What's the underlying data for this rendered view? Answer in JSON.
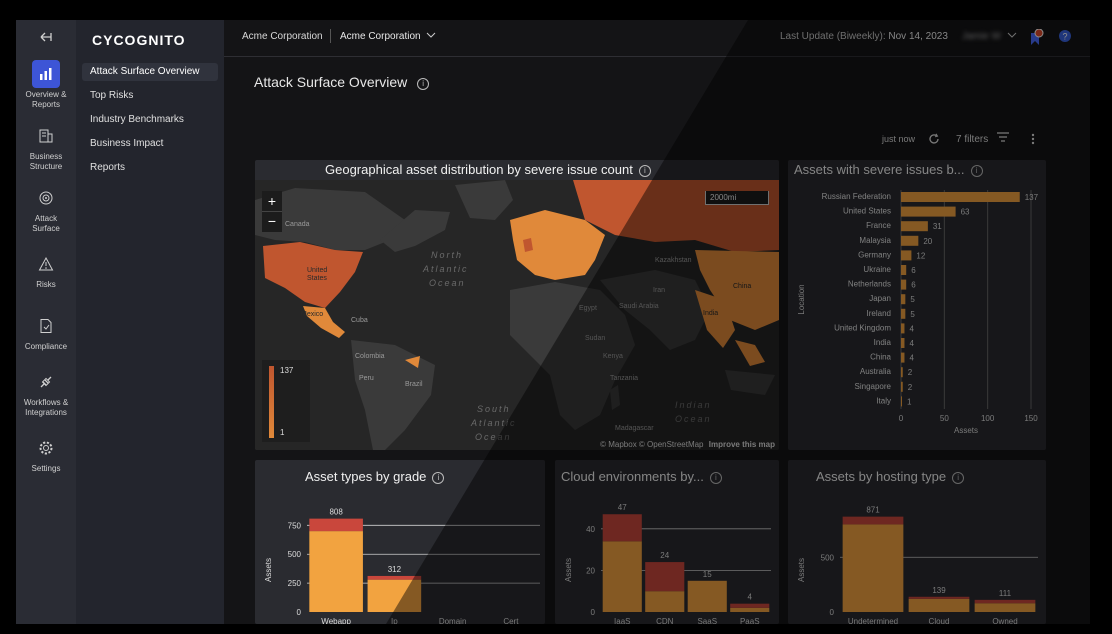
{
  "sidebar": {
    "items": [
      {
        "label1": "Overview &",
        "label2": "Reports",
        "icon": "chart-icon"
      },
      {
        "label1": "Business",
        "label2": "Structure",
        "icon": "building-icon"
      },
      {
        "label1": "Attack",
        "label2": "Surface",
        "icon": "target-icon"
      },
      {
        "label1": "Risks",
        "label2": "",
        "icon": "warning-icon"
      },
      {
        "label1": "Compliance",
        "label2": "",
        "icon": "document-check-icon"
      },
      {
        "label1": "Workflows &",
        "label2": "Integrations",
        "icon": "plug-icon"
      },
      {
        "label1": "Settings",
        "label2": "",
        "icon": "gear-icon"
      }
    ]
  },
  "nav": {
    "logo": "CYCOGNITO",
    "items": [
      "Attack Surface Overview",
      "Top Risks",
      "Industry Benchmarks",
      "Business Impact",
      "Reports"
    ]
  },
  "topbar": {
    "org1": "Acme Corporation",
    "org2": "Acme Corporation",
    "last_update_label": "Last Update (Biweekly):",
    "last_update_date": "Nov 14, 2023",
    "user": "Jamie W"
  },
  "page": {
    "title": "Attack Surface Overview",
    "refresh_label": "just now",
    "filters_label": "7 filters"
  },
  "map": {
    "title": "Geographical asset distribution by severe issue count",
    "scale": "2000mi",
    "legend_max": "137",
    "legend_min": "1",
    "attribution": "© Mapbox © OpenStreetMap",
    "improve": "Improve this map",
    "labels": {
      "canada": "Canada",
      "us1": "United",
      "us2": "States",
      "mexico": "Mexico",
      "cuba": "Cuba",
      "colombia": "Colombia",
      "peru": "Peru",
      "brazil": "Brazil",
      "egypt": "Egypt",
      "sudan": "Sudan",
      "kenya": "Kenya",
      "saudi": "Saudi Arabia",
      "iran": "Iran",
      "india": "India",
      "china": "China",
      "kazakhstan": "Kazakhstan",
      "madagascar": "Madagascar",
      "tanzania": "Tanzania",
      "nao1": "North",
      "nao2": "Atlantic",
      "nao3": "Ocean",
      "sao1": "South",
      "sao2": "Atlantic",
      "sao3": "Ocean",
      "io1": "Indian",
      "io2": "Ocean"
    },
    "colors": {
      "land": "#3a3a3a",
      "sea": "#262626",
      "hot": "#c0562f",
      "warm": "#e0893a"
    }
  },
  "chart_data": [
    {
      "type": "bar",
      "orientation": "horizontal",
      "title": "Assets with severe issues b...",
      "xlabel": "Assets",
      "ylabel": "Location",
      "categories": [
        "Russian Federation",
        "United States",
        "France",
        "Malaysia",
        "Germany",
        "Ukraine",
        "Netherlands",
        "Japan",
        "Ireland",
        "United Kingdom",
        "India",
        "China",
        "Australia",
        "Singapore",
        "Italy"
      ],
      "values": [
        137,
        63,
        31,
        20,
        12,
        6,
        6,
        5,
        5,
        4,
        4,
        4,
        2,
        2,
        1
      ],
      "xlim": [
        0,
        150
      ],
      "xticks": [
        0,
        50,
        100,
        150
      ],
      "grid": true,
      "color": "#f2a340"
    },
    {
      "type": "bar",
      "stacked": true,
      "title": "Asset types by grade",
      "ylabel": "Assets",
      "categories": [
        "Webapp",
        "Ip",
        "Domain",
        "Cert"
      ],
      "totals": [
        808,
        312,
        null,
        null
      ],
      "series": [
        {
          "values": [
            700,
            280,
            0,
            0
          ],
          "color": "#f2a340"
        },
        {
          "values": [
            108,
            32,
            0,
            0
          ],
          "color": "#c9473c"
        }
      ],
      "ylim": [
        0,
        900
      ],
      "yticks": [
        0,
        250,
        500,
        750
      ]
    },
    {
      "type": "bar",
      "stacked": true,
      "title": "Cloud environments by...",
      "ylabel": "Assets",
      "categories": [
        "IaaS",
        "CDN",
        "SaaS",
        "PaaS"
      ],
      "totals": [
        47,
        24,
        15,
        4
      ],
      "series": [
        {
          "values": [
            34,
            10,
            15,
            2
          ],
          "color": "#f2a340"
        },
        {
          "values": [
            13,
            14,
            0,
            2
          ],
          "color": "#c9473c"
        }
      ],
      "ylim": [
        0,
        50
      ],
      "yticks": [
        0,
        20,
        40
      ]
    },
    {
      "type": "bar",
      "stacked": true,
      "title": "Assets by hosting type",
      "ylabel": "Assets",
      "categories": [
        "Undetermined",
        "Cloud",
        "Owned"
      ],
      "totals": [
        871,
        139,
        111
      ],
      "series": [
        {
          "values": [
            800,
            120,
            80
          ],
          "color": "#f2a340"
        },
        {
          "values": [
            71,
            19,
            31
          ],
          "color": "#c9473c"
        }
      ],
      "ylim": [
        0,
        950
      ],
      "yticks": [
        0,
        500
      ]
    }
  ]
}
